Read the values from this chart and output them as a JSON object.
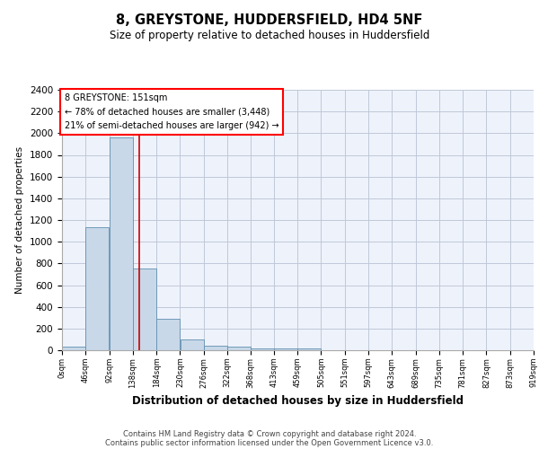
{
  "title": "8, GREYSTONE, HUDDERSFIELD, HD4 5NF",
  "subtitle": "Size of property relative to detached houses in Huddersfield",
  "xlabel": "Distribution of detached houses by size in Huddersfield",
  "ylabel": "Number of detached properties",
  "footer1": "Contains HM Land Registry data © Crown copyright and database right 2024.",
  "footer2": "Contains public sector information licensed under the Open Government Licence v3.0.",
  "annotation_title": "8 GREYSTONE: 151sqm",
  "annotation_line1": "← 78% of detached houses are smaller (3,448)",
  "annotation_line2": "21% of semi-detached houses are larger (942) →",
  "property_size": 151,
  "bar_edges": [
    0,
    46,
    92,
    138,
    184,
    230,
    276,
    322,
    368,
    413,
    459,
    505,
    551,
    597,
    643,
    689,
    735,
    781,
    827,
    873,
    919
  ],
  "bar_heights": [
    30,
    1130,
    1960,
    750,
    290,
    100,
    40,
    30,
    20,
    15,
    20,
    0,
    0,
    0,
    0,
    0,
    0,
    0,
    0,
    0
  ],
  "bar_color": "#c8d8e8",
  "bar_edge_color": "#6090b0",
  "vline_color": "#cc0000",
  "background_color": "#eef2fb",
  "grid_color": "#c0c8d8",
  "ylim": [
    0,
    2400
  ],
  "yticks": [
    0,
    200,
    400,
    600,
    800,
    1000,
    1200,
    1400,
    1600,
    1800,
    2000,
    2200,
    2400
  ]
}
